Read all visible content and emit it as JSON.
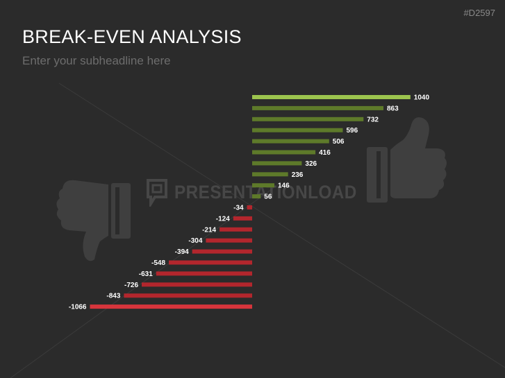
{
  "slide": {
    "code": "#D2597",
    "title": "BREAK-EVEN ANALYSIS",
    "subtitle": "Enter your subheadline here",
    "watermark": "PRESENTATIONLOAD"
  },
  "icons": [
    "thumbs-up-icon",
    "thumbs-down-icon",
    "presentationload-logo-icon"
  ],
  "chart_data": {
    "type": "bar",
    "orientation": "horizontal",
    "values": [
      1040,
      863,
      732,
      596,
      506,
      416,
      326,
      236,
      146,
      56,
      -34,
      -124,
      -214,
      -304,
      -394,
      -548,
      -631,
      -726,
      -843,
      -1066
    ],
    "labels": [
      "1040",
      "863",
      "732",
      "596",
      "506",
      "416",
      "326",
      "236",
      "146",
      "56",
      "-34",
      "-124",
      "-214",
      "-304",
      "-394",
      "-548",
      "-631",
      "-726",
      "-843",
      "-1066"
    ],
    "colors": {
      "positive": "#5e7a2a",
      "positive_max": "#9cc44e",
      "negative": "#b3262d",
      "negative_min": "#d7353c"
    },
    "grid": false,
    "legend": "none"
  }
}
